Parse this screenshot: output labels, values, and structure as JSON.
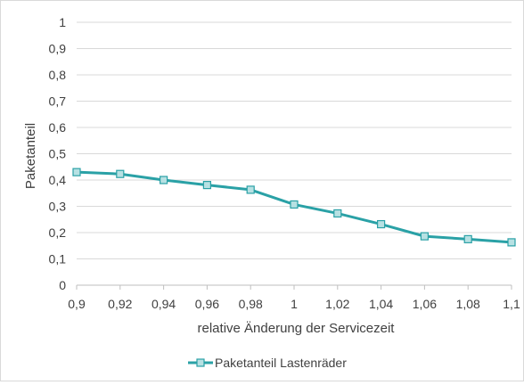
{
  "chart_data": {
    "type": "line",
    "title": "",
    "xlabel": "relative Änderung der Servicezeit",
    "ylabel": "Paketanteil",
    "x": [
      0.9,
      0.92,
      0.94,
      0.96,
      0.98,
      1.0,
      1.02,
      1.04,
      1.06,
      1.08,
      1.1
    ],
    "x_tick_labels": [
      "0,9",
      "0,92",
      "0,94",
      "0,96",
      "0,98",
      "1",
      "1,02",
      "1,04",
      "1,06",
      "1,08",
      "1,1"
    ],
    "y_ticks": [
      0,
      0.1,
      0.2,
      0.3,
      0.4,
      0.5,
      0.6,
      0.7,
      0.8,
      0.9,
      1
    ],
    "y_tick_labels": [
      "0",
      "0,1",
      "0,2",
      "0,3",
      "0,4",
      "0,5",
      "0,6",
      "0,7",
      "0,8",
      "0,9",
      "1"
    ],
    "xlim": [
      0.9,
      1.1
    ],
    "ylim": [
      0,
      1
    ],
    "grid": true,
    "legend_position": "bottom",
    "series": [
      {
        "name": "Paketanteil Lastenräder",
        "color": "#2aa1a6",
        "marker": "square",
        "values": [
          0.43,
          0.423,
          0.4,
          0.381,
          0.363,
          0.307,
          0.273,
          0.232,
          0.186,
          0.175,
          0.163
        ]
      }
    ]
  }
}
